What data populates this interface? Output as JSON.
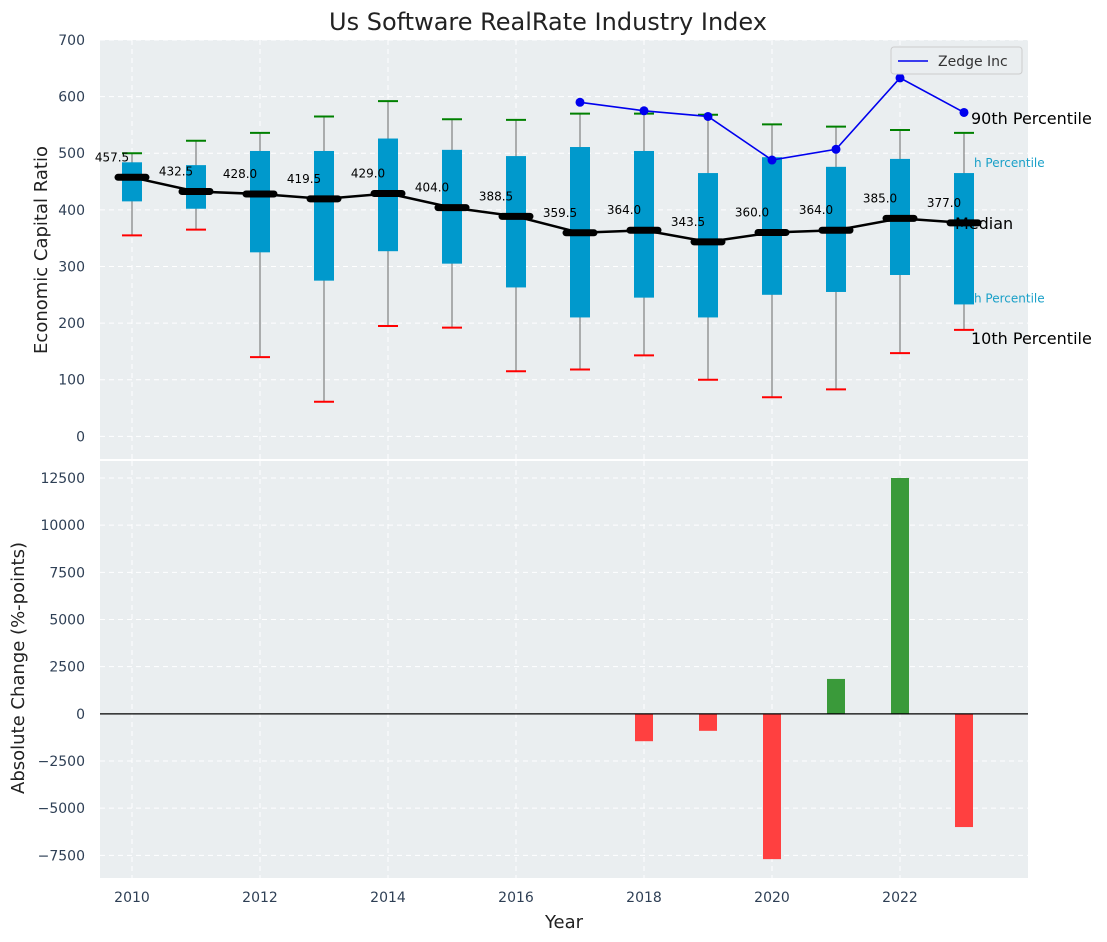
{
  "title": "Us Software RealRate Industry Index",
  "xlabel": "Year",
  "colors": {
    "panel_bg": "#eaeef0",
    "box": "#0099cc",
    "median_line": "#000000",
    "company_line": "#0000ee",
    "whisker_high": "#008000",
    "whisker_low": "#ff0000",
    "bar_positive": "#3a9a3a",
    "bar_negative": "#ff4040"
  },
  "chart_data": [
    {
      "type": "box",
      "ylabel": "Economic Capital Ratio",
      "ylim": [
        -40,
        700
      ],
      "yticks": [
        0,
        100,
        200,
        300,
        400,
        500,
        600,
        700
      ],
      "xticks": [
        2010,
        2012,
        2014,
        2016,
        2018,
        2020,
        2022
      ],
      "xlim": [
        2009.5,
        2024
      ],
      "years": [
        2010,
        2011,
        2012,
        2013,
        2014,
        2015,
        2016,
        2017,
        2018,
        2019,
        2020,
        2021,
        2022,
        2023
      ],
      "p10": [
        355,
        365,
        140,
        61,
        195,
        192,
        115,
        118,
        143,
        100,
        69,
        83,
        147,
        188
      ],
      "q1": [
        415,
        402,
        325,
        275,
        327,
        305,
        263,
        210,
        245,
        210,
        250,
        255,
        285,
        233
      ],
      "median": [
        457.5,
        432.5,
        428.0,
        419.5,
        429.0,
        404.0,
        388.5,
        359.5,
        364.0,
        343.5,
        360.0,
        364.0,
        385.0,
        377.0
      ],
      "median_labels": [
        "457.5",
        "432.5",
        "428.0",
        "419.5",
        "429.0",
        "404.0",
        "388.5",
        "359.5",
        "364.0",
        "343.5",
        "360.0",
        "364.0",
        "385.0",
        "377.0"
      ],
      "q3": [
        484,
        479,
        504,
        504,
        526,
        506,
        495,
        511,
        504,
        465,
        493,
        476,
        490,
        465
      ],
      "p90": [
        500,
        522,
        536,
        565,
        592,
        560,
        559,
        570,
        570,
        568,
        551,
        547,
        541,
        536
      ],
      "company": {
        "name": "Zedge Inc",
        "years": [
          2017,
          2018,
          2019,
          2020,
          2021,
          2022,
          2023
        ],
        "values": [
          590,
          575,
          565,
          488,
          507,
          633,
          572
        ]
      },
      "percentile_labels": {
        "p90": "90th Percentile",
        "q3": "h Percentile",
        "median": "Median",
        "q1": "h Percentile",
        "p10": "10th Percentile"
      },
      "legend": "top-right",
      "grid": true
    },
    {
      "type": "bar",
      "ylabel": "Absolute Change (%-points)",
      "ylim": [
        -8700,
        13400
      ],
      "yticks": [
        -7500,
        -5000,
        -2500,
        0,
        2500,
        5000,
        7500,
        10000,
        12500
      ],
      "ytick_labels": [
        "−7500",
        "−5000",
        "−2500",
        "0",
        "2500",
        "5000",
        "7500",
        "10000",
        "12500"
      ],
      "xticks": [
        2010,
        2012,
        2014,
        2016,
        2018,
        2020,
        2022
      ],
      "xlim": [
        2009.5,
        2024
      ],
      "years": [
        2018,
        2019,
        2020,
        2021,
        2022,
        2023
      ],
      "values": [
        -1450,
        -900,
        -7700,
        1850,
        12500,
        -6000
      ],
      "grid": true
    }
  ]
}
